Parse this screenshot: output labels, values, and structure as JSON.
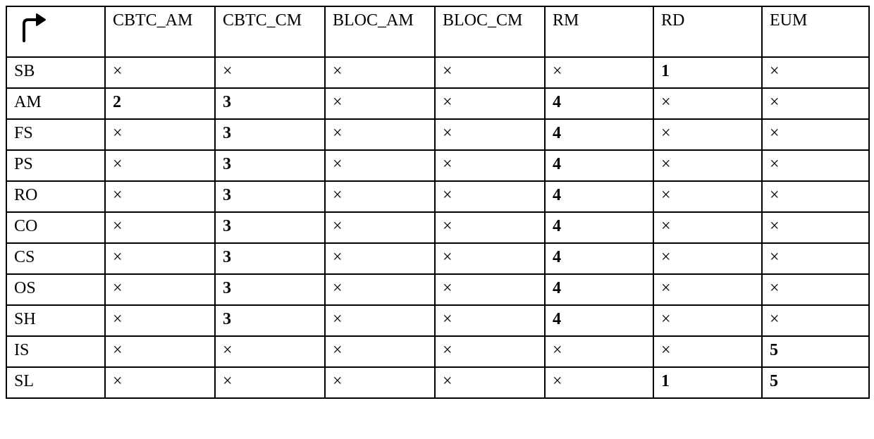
{
  "table": {
    "background_color": "#ffffff",
    "border_color": "#000000",
    "text_color": "#000000",
    "font_family": "Times New Roman",
    "header_fontsize": 24,
    "cell_fontsize": 24,
    "cross_glyph": "×",
    "columns": [
      "CBTC_AM",
      "CBTC_CM",
      "BLOC_AM",
      "BLOC_CM",
      "RM",
      "RD",
      "EUM"
    ],
    "row_labels": [
      "SB",
      "AM",
      "FS",
      "PS",
      "RO",
      "CO",
      "CS",
      "OS",
      "SH",
      "IS",
      "SL"
    ],
    "rows": [
      {
        "label": "SB",
        "cells": [
          {
            "v": "×",
            "bold": false
          },
          {
            "v": "×",
            "bold": false
          },
          {
            "v": "×",
            "bold": false
          },
          {
            "v": "×",
            "bold": false
          },
          {
            "v": "×",
            "bold": false
          },
          {
            "v": "1",
            "bold": true
          },
          {
            "v": "×",
            "bold": false
          }
        ]
      },
      {
        "label": "AM",
        "cells": [
          {
            "v": "2",
            "bold": true
          },
          {
            "v": "3",
            "bold": true
          },
          {
            "v": "×",
            "bold": false
          },
          {
            "v": "×",
            "bold": false
          },
          {
            "v": "4",
            "bold": true
          },
          {
            "v": "×",
            "bold": false
          },
          {
            "v": "×",
            "bold": false
          }
        ]
      },
      {
        "label": "FS",
        "cells": [
          {
            "v": "×",
            "bold": false
          },
          {
            "v": "3",
            "bold": true
          },
          {
            "v": "×",
            "bold": false
          },
          {
            "v": "×",
            "bold": false
          },
          {
            "v": "4",
            "bold": true
          },
          {
            "v": "×",
            "bold": false
          },
          {
            "v": "×",
            "bold": false
          }
        ]
      },
      {
        "label": "PS",
        "cells": [
          {
            "v": "×",
            "bold": false
          },
          {
            "v": "3",
            "bold": true
          },
          {
            "v": "×",
            "bold": false
          },
          {
            "v": "×",
            "bold": false
          },
          {
            "v": "4",
            "bold": true
          },
          {
            "v": "×",
            "bold": false
          },
          {
            "v": "×",
            "bold": false
          }
        ]
      },
      {
        "label": "RO",
        "cells": [
          {
            "v": "×",
            "bold": false
          },
          {
            "v": "3",
            "bold": true
          },
          {
            "v": "×",
            "bold": false
          },
          {
            "v": "×",
            "bold": false
          },
          {
            "v": "4",
            "bold": true
          },
          {
            "v": "×",
            "bold": false
          },
          {
            "v": "×",
            "bold": false
          }
        ]
      },
      {
        "label": "CO",
        "cells": [
          {
            "v": "×",
            "bold": false
          },
          {
            "v": "3",
            "bold": true
          },
          {
            "v": "×",
            "bold": false
          },
          {
            "v": "×",
            "bold": false
          },
          {
            "v": "4",
            "bold": true
          },
          {
            "v": "×",
            "bold": false
          },
          {
            "v": "×",
            "bold": false
          }
        ]
      },
      {
        "label": "CS",
        "cells": [
          {
            "v": "×",
            "bold": false
          },
          {
            "v": "3",
            "bold": true
          },
          {
            "v": "×",
            "bold": false
          },
          {
            "v": "×",
            "bold": false
          },
          {
            "v": "4",
            "bold": true
          },
          {
            "v": "×",
            "bold": false
          },
          {
            "v": "×",
            "bold": false
          }
        ]
      },
      {
        "label": "OS",
        "cells": [
          {
            "v": "×",
            "bold": false
          },
          {
            "v": "3",
            "bold": true
          },
          {
            "v": "×",
            "bold": false
          },
          {
            "v": "×",
            "bold": false
          },
          {
            "v": "4",
            "bold": true
          },
          {
            "v": "×",
            "bold": false
          },
          {
            "v": "×",
            "bold": false
          }
        ]
      },
      {
        "label": "SH",
        "cells": [
          {
            "v": "×",
            "bold": false
          },
          {
            "v": "3",
            "bold": true
          },
          {
            "v": "×",
            "bold": false
          },
          {
            "v": "×",
            "bold": false
          },
          {
            "v": "4",
            "bold": true
          },
          {
            "v": "×",
            "bold": false
          },
          {
            "v": "×",
            "bold": false
          }
        ]
      },
      {
        "label": "IS",
        "cells": [
          {
            "v": "×",
            "bold": false
          },
          {
            "v": "×",
            "bold": false
          },
          {
            "v": "×",
            "bold": false
          },
          {
            "v": "×",
            "bold": false
          },
          {
            "v": "×",
            "bold": false
          },
          {
            "v": "×",
            "bold": false
          },
          {
            "v": "5",
            "bold": true
          }
        ]
      },
      {
        "label": "SL",
        "cells": [
          {
            "v": "×",
            "bold": false
          },
          {
            "v": "×",
            "bold": false
          },
          {
            "v": "×",
            "bold": false
          },
          {
            "v": "×",
            "bold": false
          },
          {
            "v": "×",
            "bold": false
          },
          {
            "v": "1",
            "bold": true
          },
          {
            "v": "5",
            "bold": true
          }
        ]
      }
    ]
  }
}
